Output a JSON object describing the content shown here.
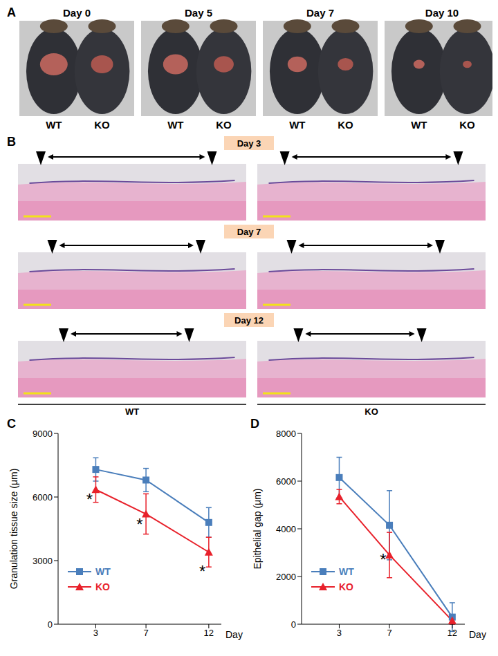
{
  "panel_A": {
    "label": "A",
    "photos": [
      {
        "title": "Day 0",
        "labels": [
          "WT",
          "KO"
        ]
      },
      {
        "title": "Day 5",
        "labels": [
          "WT",
          "KO"
        ]
      },
      {
        "title": "Day 7",
        "labels": [
          "WT",
          "KO"
        ]
      },
      {
        "title": "Day 10",
        "labels": [
          "WT",
          "KO"
        ]
      }
    ]
  },
  "panel_B": {
    "label": "B",
    "rows": [
      "Day 3",
      "Day 7",
      "Day 12"
    ],
    "columns": [
      "WT",
      "KO"
    ]
  },
  "chart_data": [
    {
      "label": "C",
      "type": "line",
      "x_label": "Day",
      "y_label": "Granulation tissue size (μm)",
      "x": [
        3,
        7,
        12
      ],
      "xlim": [
        0,
        13
      ],
      "xticks": [
        3,
        7,
        12
      ],
      "ylim": [
        0,
        9000
      ],
      "yticks": [
        0,
        3000,
        6000,
        9000
      ],
      "grid": false,
      "legend": "lower left",
      "series": [
        {
          "name": "WT",
          "color": "#4a7ebb",
          "marker": "square",
          "values": [
            7300,
            6800,
            4800
          ],
          "errors": [
            550,
            550,
            700
          ]
        },
        {
          "name": "KO",
          "color": "#e8212b",
          "marker": "triangle",
          "values": [
            6350,
            5200,
            3400
          ],
          "errors": [
            600,
            950,
            700
          ]
        }
      ],
      "annotations": [
        {
          "text": "*",
          "x": 2.5,
          "y": 5900
        },
        {
          "text": "*",
          "x": 6.5,
          "y": 4700
        },
        {
          "text": "*",
          "x": 11.5,
          "y": 2500
        }
      ]
    },
    {
      "label": "D",
      "type": "line",
      "x_label": "Day",
      "y_label": "Epithelial gap (μm)",
      "x": [
        3,
        7,
        12
      ],
      "xlim": [
        0,
        13
      ],
      "xticks": [
        3,
        7,
        12
      ],
      "ylim": [
        0,
        8000
      ],
      "yticks": [
        0,
        2000,
        4000,
        6000,
        8000
      ],
      "grid": false,
      "legend": "lower left",
      "series": [
        {
          "name": "WT",
          "color": "#4a7ebb",
          "marker": "square",
          "values": [
            6150,
            4150,
            300
          ],
          "errors": [
            850,
            1450,
            600
          ]
        },
        {
          "name": "KO",
          "color": "#e8212b",
          "marker": "triangle",
          "values": [
            5350,
            2900,
            150
          ],
          "errors": [
            300,
            950,
            150
          ]
        }
      ],
      "annotations": [
        {
          "text": "*",
          "x": 6.5,
          "y": 2700
        }
      ]
    }
  ]
}
